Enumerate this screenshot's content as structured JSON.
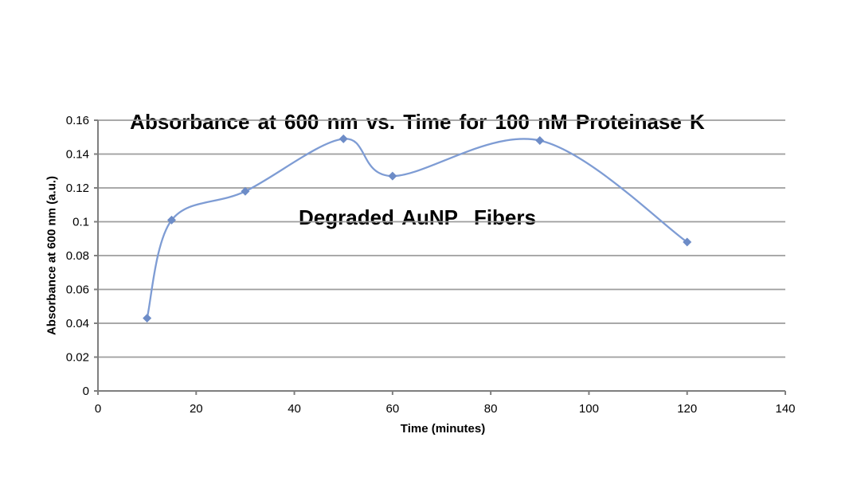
{
  "chart": {
    "title_line1": "Absorbance at 600 nm vs. Time for 100 nM Proteinase K",
    "title_line2": "Degraded AuNP  Fibers",
    "xlabel": "Time (minutes)",
    "ylabel": "Absorbance at 600 nm (a.u.)"
  },
  "chart_data": {
    "type": "line",
    "title": "Absorbance at 600 nm vs. Time for 100 nM Proteinase K Degraded AuNP Fibers",
    "xlabel": "Time (minutes)",
    "ylabel": "Absorbance at 600 nm (a.u.)",
    "x": [
      10,
      15,
      30,
      50,
      60,
      90,
      120
    ],
    "y": [
      0.043,
      0.101,
      0.118,
      0.149,
      0.127,
      0.148,
      0.088
    ],
    "xlim": [
      0,
      140
    ],
    "ylim": [
      0,
      0.16
    ],
    "xticks": [
      0,
      20,
      40,
      60,
      80,
      100,
      120,
      140
    ],
    "xtick_labels": [
      "0",
      "20",
      "40",
      "60",
      "80",
      "100",
      "120",
      "140"
    ],
    "yticks": [
      0,
      0.02,
      0.04,
      0.06,
      0.08,
      0.1,
      0.12,
      0.14,
      0.16
    ],
    "ytick_labels": [
      "0",
      "0.02",
      "0.04",
      "0.06",
      "0.08",
      "0.1",
      "0.12",
      "0.14",
      "0.16"
    ],
    "grid": "horizontal",
    "legend": false,
    "smooth": true,
    "marker": "diamond",
    "line_color": "#7e9cd4",
    "marker_color": "#6d8cc7",
    "gridline_color": "#9d9d9d",
    "axis_color": "#7f7f7f",
    "text_color": "#000000"
  }
}
